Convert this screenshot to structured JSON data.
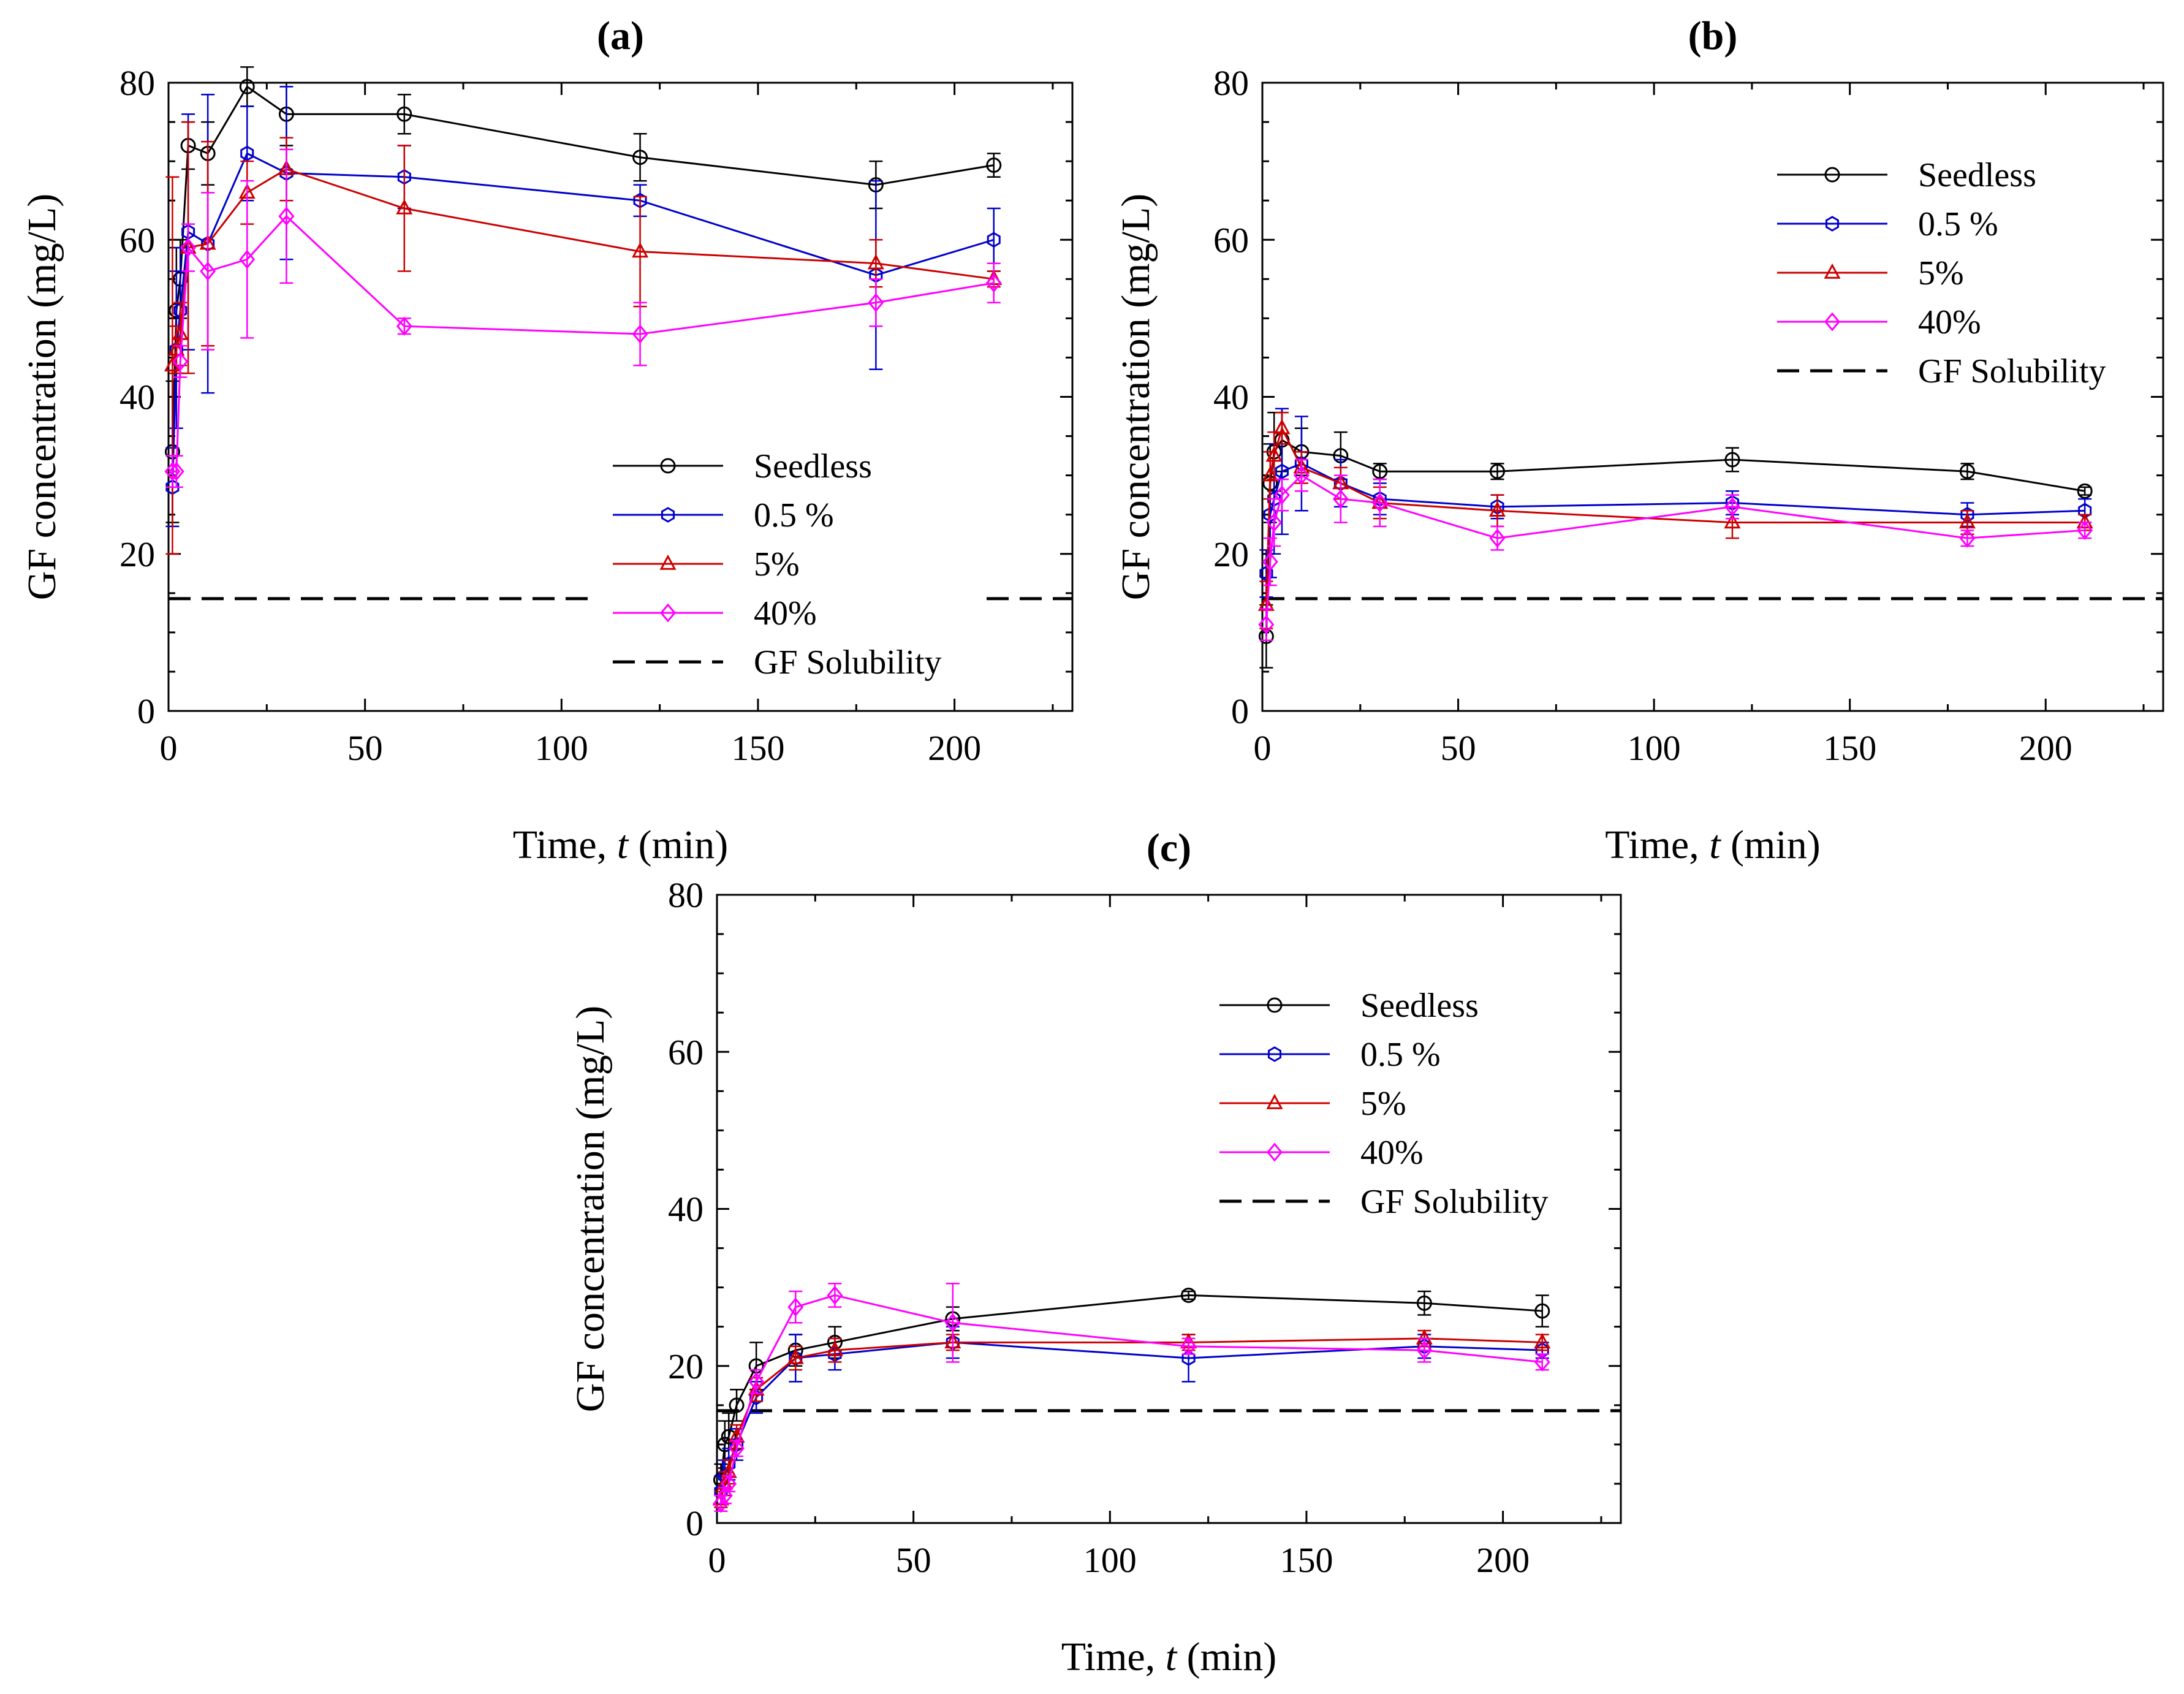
{
  "chart_data": [
    {
      "type": "line",
      "title": "(a)",
      "xlabel": "Time, t (min)",
      "xlabel_prefix": "Time, ",
      "xlabel_var": "t",
      "xlabel_suffix": " (min)",
      "ylabel": "GF concentration (mg/L)",
      "xlim": [
        0,
        230
      ],
      "ylim": [
        0,
        80
      ],
      "xticks": [
        0,
        50,
        100,
        150,
        200
      ],
      "yticks": [
        0,
        20,
        40,
        60,
        80
      ],
      "legend": "center-right",
      "series": [
        {
          "name": "Seedless",
          "color": "#000000",
          "marker": "circle",
          "x": [
            1,
            2,
            3,
            5,
            10,
            20,
            30,
            60,
            120,
            180,
            210
          ],
          "y": [
            33,
            51,
            55,
            72,
            71,
            79.5,
            76,
            76,
            70.5,
            67,
            69.5
          ],
          "err": [
            9,
            8,
            5,
            3,
            4,
            2.5,
            4,
            2.5,
            3,
            3,
            1.5
          ]
        },
        {
          "name": "0.5 %",
          "color": "#0000cc",
          "marker": "hexagon",
          "x": [
            1,
            2,
            3,
            5,
            10,
            20,
            30,
            60,
            120,
            180,
            210
          ],
          "y": [
            28.5,
            46,
            51,
            61,
            59.5,
            71,
            68.5,
            68,
            65,
            55.5,
            60
          ],
          "err": [
            5,
            10,
            8,
            15,
            19,
            6,
            11,
            4,
            2,
            12,
            4
          ]
        },
        {
          "name": "5%",
          "color": "#cc0000",
          "marker": "triangle",
          "x": [
            1,
            2,
            3,
            5,
            10,
            20,
            30,
            60,
            120,
            180,
            210
          ],
          "y": [
            44,
            46,
            48,
            59,
            59.5,
            66,
            69,
            64,
            58.5,
            57,
            55
          ],
          "err": [
            24,
            3,
            4,
            16,
            13,
            4,
            4,
            8,
            7,
            3,
            1
          ]
        },
        {
          "name": "40%",
          "color": "#ff00ff",
          "marker": "diamond",
          "x": [
            1,
            2,
            3,
            5,
            10,
            20,
            30,
            60,
            120,
            180,
            210
          ],
          "y": [
            30.5,
            30.5,
            44.5,
            59,
            56,
            57.5,
            63,
            49,
            48,
            52,
            54.5
          ],
          "err": [
            2,
            2,
            2,
            3,
            10,
            10,
            8.5,
            1,
            4,
            3,
            2.5
          ]
        }
      ],
      "solubility": {
        "name": "GF Solubility",
        "value": 14.3
      }
    },
    {
      "type": "line",
      "title": "(b)",
      "xlabel": "Time, t (min)",
      "xlabel_prefix": "Time, ",
      "xlabel_var": "t",
      "xlabel_suffix": " (min)",
      "ylabel": "GF concentration (mg/L)",
      "xlim": [
        0,
        230
      ],
      "ylim": [
        0,
        80
      ],
      "xticks": [
        0,
        50,
        100,
        150,
        200
      ],
      "yticks": [
        0,
        20,
        40,
        60,
        80
      ],
      "legend": "top-right",
      "series": [
        {
          "name": "Seedless",
          "color": "#000000",
          "marker": "circle",
          "x": [
            1,
            2,
            3,
            5,
            10,
            20,
            30,
            60,
            120,
            180,
            210
          ],
          "y": [
            9.5,
            29,
            33,
            34.5,
            33,
            32.5,
            30.5,
            30.5,
            32,
            30.5,
            28
          ],
          "err": [
            4,
            5,
            5,
            4,
            3,
            3,
            1,
            1,
            1.5,
            1,
            0.5
          ]
        },
        {
          "name": "0.5 %",
          "color": "#0000cc",
          "marker": "hexagon",
          "x": [
            1,
            2,
            3,
            5,
            10,
            20,
            30,
            60,
            120,
            180,
            210
          ],
          "y": [
            17.5,
            25,
            27,
            30.5,
            31.5,
            29,
            27,
            26,
            26.5,
            25,
            25.5
          ],
          "err": [
            3,
            8,
            7,
            8,
            6,
            3,
            2,
            1.5,
            1.5,
            1.5,
            1.5
          ]
        },
        {
          "name": "5%",
          "color": "#cc0000",
          "marker": "triangle",
          "x": [
            1,
            2,
            3,
            5,
            10,
            20,
            30,
            60,
            120,
            180,
            210
          ],
          "y": [
            13.5,
            30,
            32.5,
            36,
            31,
            29,
            26.5,
            25.5,
            24,
            24,
            24
          ],
          "err": [
            3,
            3,
            3,
            2,
            2,
            2,
            2,
            2,
            2,
            1.5,
            1
          ]
        },
        {
          "name": "40%",
          "color": "#ff00ff",
          "marker": "diamond",
          "x": [
            1,
            2,
            3,
            5,
            10,
            20,
            30,
            60,
            120,
            180,
            210
          ],
          "y": [
            11,
            19,
            24,
            27.5,
            30,
            27,
            26.5,
            22,
            26,
            22,
            23
          ],
          "err": [
            2,
            3,
            3,
            2,
            2,
            3,
            3,
            1.5,
            1.5,
            1,
            1
          ]
        }
      ],
      "solubility": {
        "name": "GF Solubility",
        "value": 14.3
      }
    },
    {
      "type": "line",
      "title": "(c)",
      "xlabel": "Time, t (min)",
      "xlabel_prefix": "Time, ",
      "xlabel_var": "t",
      "xlabel_suffix": " (min)",
      "ylabel": "GF concentration (mg/L)",
      "xlim": [
        0,
        230
      ],
      "ylim": [
        0,
        80
      ],
      "xticks": [
        0,
        50,
        100,
        150,
        200
      ],
      "yticks": [
        0,
        20,
        40,
        60,
        80
      ],
      "legend": "top-right",
      "series": [
        {
          "name": "Seedless",
          "color": "#000000",
          "marker": "circle",
          "x": [
            1,
            2,
            3,
            5,
            10,
            20,
            30,
            60,
            120,
            180,
            210
          ],
          "y": [
            5.5,
            10,
            11,
            15,
            20,
            22,
            23,
            26,
            29,
            28,
            27
          ],
          "err": [
            2,
            3,
            3,
            2,
            3,
            2,
            2,
            1.5,
            0.5,
            1.5,
            2
          ]
        },
        {
          "name": "0.5 %",
          "color": "#0000cc",
          "marker": "hexagon",
          "x": [
            1,
            2,
            3,
            5,
            10,
            20,
            30,
            60,
            120,
            180,
            210
          ],
          "y": [
            4,
            6,
            7.5,
            10,
            16,
            21,
            21.5,
            23,
            21,
            22.5,
            22
          ],
          "err": [
            2,
            2,
            2,
            2,
            2,
            3,
            2,
            2,
            3,
            1.5,
            1
          ]
        },
        {
          "name": "5%",
          "color": "#cc0000",
          "marker": "triangle",
          "x": [
            1,
            2,
            3,
            5,
            10,
            20,
            30,
            60,
            120,
            180,
            210
          ],
          "y": [
            3,
            5,
            6.5,
            11,
            17,
            21,
            22,
            23,
            23,
            23.5,
            23
          ],
          "err": [
            1,
            1.5,
            1.5,
            1.5,
            1.5,
            1.5,
            1.5,
            1,
            1,
            1,
            1
          ]
        },
        {
          "name": "40%",
          "color": "#ff00ff",
          "marker": "diamond",
          "x": [
            1,
            2,
            3,
            5,
            10,
            20,
            30,
            60,
            120,
            180,
            210
          ],
          "y": [
            2.5,
            3.5,
            5,
            9.5,
            18,
            27.5,
            29,
            25.5,
            22.5,
            22,
            20.5
          ],
          "err": [
            1,
            1,
            1,
            1,
            1.5,
            2,
            1.5,
            5,
            1,
            1.5,
            1
          ]
        }
      ],
      "solubility": {
        "name": "GF Solubility",
        "value": 14.3
      }
    }
  ]
}
